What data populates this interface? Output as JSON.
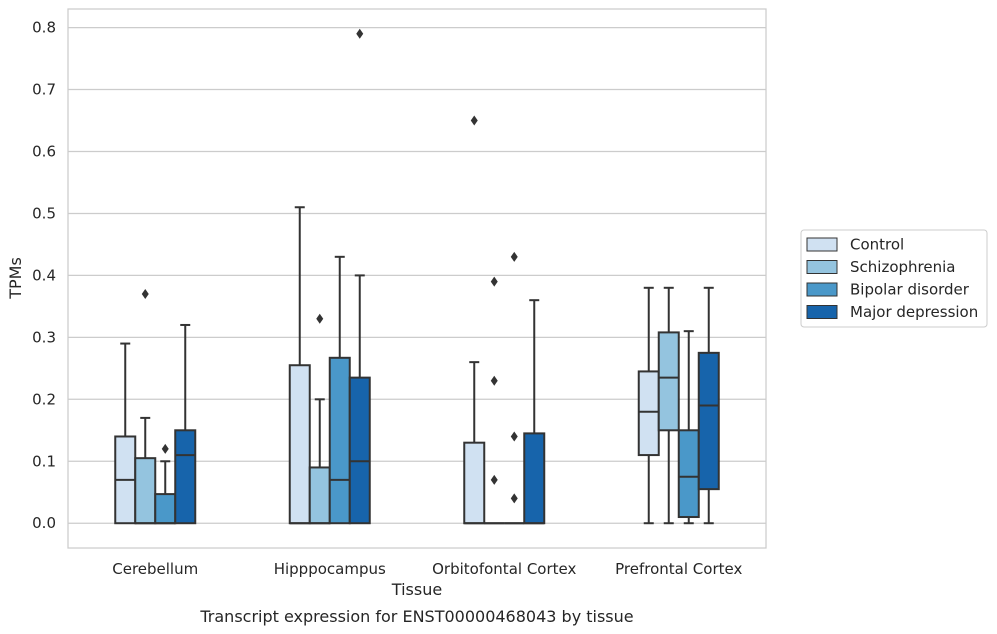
{
  "chart_data": {
    "type": "box",
    "title": "",
    "caption": "Transcript expression for ENST00000468043 by tissue",
    "xlabel": "Tissue",
    "ylabel": "TPMs",
    "ylim": [
      -0.04,
      0.83
    ],
    "yticks": [
      0.0,
      0.1,
      0.2,
      0.3,
      0.4,
      0.5,
      0.6,
      0.7,
      0.8
    ],
    "ytick_labels": [
      "0.0",
      "0.1",
      "0.2",
      "0.3",
      "0.4",
      "0.5",
      "0.6",
      "0.7",
      "0.8"
    ],
    "grid": "horizontal",
    "legend_position": "right",
    "categories": [
      "Cerebellum",
      "Hipppocampus",
      "Orbitofontal Cortex",
      "Prefrontal Cortex"
    ],
    "series": [
      {
        "name": "Control",
        "color": "#d0e1f2",
        "boxes": [
          {
            "whislo": 0.0,
            "q1": 0.0,
            "med": 0.07,
            "q3": 0.14,
            "whishi": 0.29,
            "fliers": []
          },
          {
            "whislo": 0.0,
            "q1": 0.0,
            "med": 0.0,
            "q3": 0.255,
            "whishi": 0.51,
            "fliers": []
          },
          {
            "whislo": 0.0,
            "q1": 0.0,
            "med": 0.0,
            "q3": 0.13,
            "whishi": 0.26,
            "fliers": [
              0.65
            ]
          },
          {
            "whislo": 0.0,
            "q1": 0.11,
            "med": 0.18,
            "q3": 0.245,
            "whishi": 0.38,
            "fliers": []
          }
        ]
      },
      {
        "name": "Schizophrenia",
        "color": "#94c4df",
        "boxes": [
          {
            "whislo": 0.0,
            "q1": 0.0,
            "med": 0.0,
            "q3": 0.105,
            "whishi": 0.17,
            "fliers": [
              0.37
            ]
          },
          {
            "whislo": 0.0,
            "q1": 0.0,
            "med": 0.0,
            "q3": 0.09,
            "whishi": 0.2,
            "fliers": [
              0.33
            ]
          },
          {
            "whislo": 0.0,
            "q1": 0.0,
            "med": 0.0,
            "q3": 0.0,
            "whishi": 0.0,
            "fliers": [
              0.07,
              0.23,
              0.39
            ]
          },
          {
            "whislo": 0.0,
            "q1": 0.15,
            "med": 0.235,
            "q3": 0.308,
            "whishi": 0.38,
            "fliers": []
          }
        ]
      },
      {
        "name": "Bipolar disorder",
        "color": "#4a98c9",
        "boxes": [
          {
            "whislo": 0.0,
            "q1": 0.0,
            "med": 0.0,
            "q3": 0.047,
            "whishi": 0.1,
            "fliers": [
              0.12
            ]
          },
          {
            "whislo": 0.0,
            "q1": 0.0,
            "med": 0.07,
            "q3": 0.267,
            "whishi": 0.43,
            "fliers": []
          },
          {
            "whislo": 0.0,
            "q1": 0.0,
            "med": 0.0,
            "q3": 0.0,
            "whishi": 0.0,
            "fliers": [
              0.04,
              0.14,
              0.43
            ]
          },
          {
            "whislo": 0.0,
            "q1": 0.01,
            "med": 0.075,
            "q3": 0.15,
            "whishi": 0.31,
            "fliers": []
          }
        ]
      },
      {
        "name": "Major depression",
        "color": "#1764ab",
        "boxes": [
          {
            "whislo": 0.0,
            "q1": 0.0,
            "med": 0.11,
            "q3": 0.15,
            "whishi": 0.32,
            "fliers": []
          },
          {
            "whislo": 0.0,
            "q1": 0.0,
            "med": 0.1,
            "q3": 0.235,
            "whishi": 0.4,
            "fliers": [
              0.79
            ]
          },
          {
            "whislo": 0.0,
            "q1": 0.0,
            "med": 0.0,
            "q3": 0.145,
            "whishi": 0.36,
            "fliers": []
          },
          {
            "whislo": 0.0,
            "q1": 0.055,
            "med": 0.19,
            "q3": 0.275,
            "whishi": 0.38,
            "fliers": []
          }
        ]
      }
    ]
  }
}
